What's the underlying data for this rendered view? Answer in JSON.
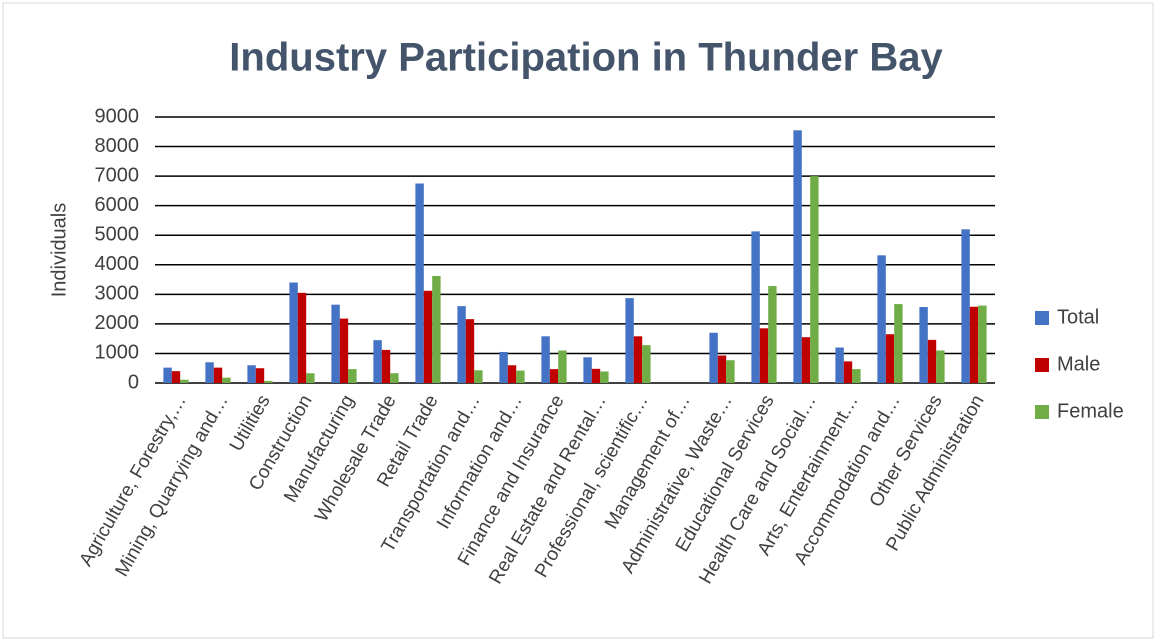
{
  "chart_data": {
    "type": "bar",
    "title": "Industry Participation in Thunder Bay",
    "y_label": "Individuals",
    "categories": [
      "Agriculture, Forestry,…",
      "Mining, Quarrying and…",
      "Utilities",
      "Construction",
      "Manufacturing",
      "Wholesale Trade",
      "Retail Trade",
      "Transportation and…",
      "Information and…",
      "Finance and Insurance",
      "Real Estate and Rental…",
      "Professional, scientific…",
      "Management of…",
      "Administrative, Waste…",
      "Educational Services",
      "Health Care and Social…",
      "Arts, Entertainment…",
      "Accommodation and…",
      "Other Services",
      "Public Administration"
    ],
    "series": [
      {
        "name": "Total",
        "color": "#4472c4",
        "values": [
          520,
          700,
          600,
          3400,
          2650,
          1450,
          6750,
          2600,
          1050,
          1580,
          870,
          2870,
          0,
          1700,
          5130,
          8550,
          1200,
          4320,
          2570,
          5200
        ]
      },
      {
        "name": "Male",
        "color": "#c00000",
        "values": [
          400,
          520,
          500,
          3050,
          2180,
          1120,
          3120,
          2160,
          600,
          470,
          480,
          1580,
          0,
          930,
          1850,
          1550,
          730,
          1650,
          1460,
          2580
        ]
      },
      {
        "name": "Female",
        "color": "#70ad47",
        "values": [
          110,
          180,
          70,
          330,
          470,
          330,
          3620,
          430,
          420,
          1100,
          390,
          1280,
          0,
          770,
          3280,
          7000,
          470,
          2670,
          1100,
          2620
        ]
      }
    ],
    "ylim": [
      0,
      9000
    ],
    "yticks": [
      0,
      1000,
      2000,
      3000,
      4000,
      5000,
      6000,
      7000,
      8000,
      9000
    ],
    "grid": true,
    "legend": "right"
  }
}
